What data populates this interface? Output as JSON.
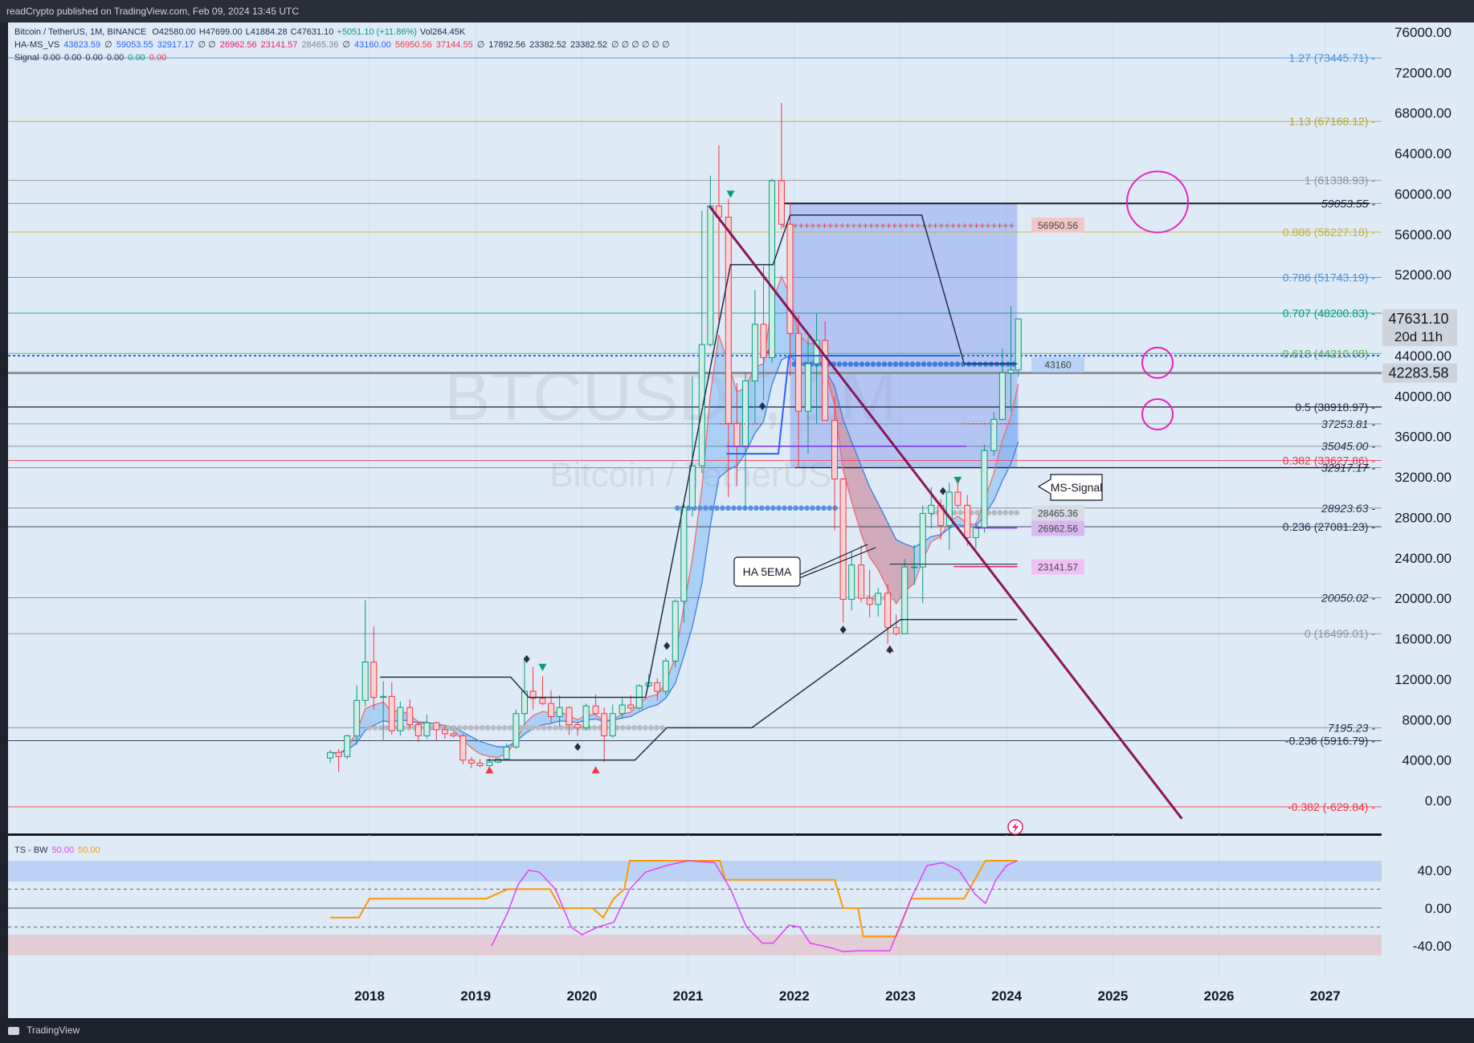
{
  "header": {
    "published": "readCrypto published on TradingView.com, Feb 09, 2024 13:45 UTC"
  },
  "footer": {
    "brand": "TradingView"
  },
  "legend": {
    "symbol": "Bitcoin / TetherUS, 1M, BINANCE",
    "ohlc": [
      {
        "text": "O42580.00",
        "color": "#22304a"
      },
      {
        "text": "H47699.00",
        "color": "#22304a"
      },
      {
        "text": "L41884.28",
        "color": "#22304a"
      },
      {
        "text": "C47631.10",
        "color": "#22304a"
      },
      {
        "text": "+5051.10 (+11.86%)",
        "color": "#089981"
      },
      {
        "text": "Vol264.45K",
        "color": "#22304a"
      }
    ],
    "hams": [
      {
        "text": "HA-MS_VS",
        "color": "#22304a"
      },
      {
        "text": "43823.59",
        "color": "#2962ff"
      },
      {
        "text": "∅",
        "color": "#22304a"
      },
      {
        "text": "59053.55",
        "color": "#2962ff"
      },
      {
        "text": "32917.17",
        "color": "#2962ff"
      },
      {
        "text": "∅ ∅",
        "color": "#22304a"
      },
      {
        "text": "26962.56",
        "color": "#e91e63"
      },
      {
        "text": "23141.57",
        "color": "#e91e63"
      },
      {
        "text": "28465.36",
        "color": "#808890"
      },
      {
        "text": "∅",
        "color": "#22304a"
      },
      {
        "text": "43160.00",
        "color": "#2962ff"
      },
      {
        "text": "56950.56",
        "color": "#f23645"
      },
      {
        "text": "37144.55",
        "color": "#f23645"
      },
      {
        "text": "∅",
        "color": "#22304a"
      },
      {
        "text": "17892.56",
        "color": "#22304a"
      },
      {
        "text": "23382.52",
        "color": "#22304a"
      },
      {
        "text": "23382.52",
        "color": "#22304a"
      },
      {
        "text": "∅ ∅ ∅ ∅ ∅ ∅",
        "color": "#22304a"
      }
    ],
    "signal": [
      {
        "text": "Signal",
        "color": "#22304a"
      },
      {
        "text": "0.00",
        "color": "#22304a"
      },
      {
        "text": "0.00",
        "color": "#22304a"
      },
      {
        "text": "0.00",
        "color": "#22304a"
      },
      {
        "text": "0.00",
        "color": "#22304a"
      },
      {
        "text": "0.00",
        "color": "#089981"
      },
      {
        "text": "0.00",
        "color": "#f23645"
      }
    ],
    "osc": [
      {
        "text": "TS - BW",
        "color": "#22304a"
      },
      {
        "text": "50.00",
        "color": "#e040fb"
      },
      {
        "text": "50.00",
        "color": "#ff9800"
      }
    ]
  },
  "watermark": {
    "ticker": "BTCUSDT, 1M",
    "name": "Bitcoin / TetherUS"
  },
  "chart_data": {
    "type": "candlestick",
    "x_axis": {
      "ticks": [
        "2018",
        "2019",
        "2020",
        "2021",
        "2022",
        "2023",
        "2024",
        "2025",
        "2026",
        "2027"
      ],
      "tick_values": [
        2018,
        2019,
        2020,
        2021,
        2022,
        2023,
        2024,
        2025,
        2026,
        2027
      ]
    },
    "y_axis": {
      "min": -2000,
      "max": 77000,
      "ticks": [
        76000,
        72000,
        68000,
        64000,
        60000,
        56000,
        52000,
        48000,
        44000,
        40000,
        36000,
        32000,
        28000,
        24000,
        20000,
        16000,
        12000,
        8000,
        4000,
        0
      ]
    },
    "price_tags": [
      {
        "text": "47631.10",
        "sub": "20d 11h",
        "value": 47631.1
      },
      {
        "text": "42283.58",
        "value": 42283.58
      }
    ],
    "fib_levels": [
      {
        "label": "1.27 (73445.71)",
        "value": 73445.71,
        "color": "#4a90d9"
      },
      {
        "label": "1.13 (67168.12)",
        "value": 67168.12,
        "color": "#b5a630"
      },
      {
        "label": "1 (61338.93)",
        "value": 61338.93,
        "color": "#8a9099"
      },
      {
        "label": "0.886 (56227.18)",
        "value": 56227.18,
        "color": "#c8b21d"
      },
      {
        "label": "0.786 (51743.19)",
        "value": 51743.19,
        "color": "#4a90d9"
      },
      {
        "label": "0.707 (48200.83)",
        "value": 48200.83,
        "color": "#089981"
      },
      {
        "label": "0.618 (44210.08)",
        "value": 44210.08,
        "color": "#4caf50"
      },
      {
        "label": "0.5 (38918.97)",
        "value": 38918.97,
        "color": "#22304a"
      },
      {
        "label": "0.382 (33627.86)",
        "value": 33627.86,
        "color": "#f23645"
      },
      {
        "label": "0.236 (27081.23)",
        "value": 27081.23,
        "color": "#22304a"
      },
      {
        "label": "0 (16499.01)",
        "value": 16499.01,
        "color": "#8a9099"
      },
      {
        "label": "-0.236 (5916.79)",
        "value": 5916.79,
        "color": "#22304a"
      },
      {
        "label": "-0.382 (-629.84)",
        "value": -629.84,
        "color": "#f23645"
      }
    ],
    "horizontal_levels": [
      {
        "label": "59053.55",
        "value": 59053.55
      },
      {
        "label": "37253.81",
        "value": 37253.81
      },
      {
        "label": "35045.00",
        "value": 35045.0
      },
      {
        "label": "32917.17",
        "value": 32917.17
      },
      {
        "label": "28923.63",
        "value": 28923.63
      },
      {
        "label": "20050.02",
        "value": 20050.02
      },
      {
        "label": "7195.23",
        "value": 7195.23
      }
    ],
    "indicator_labels": [
      {
        "text": "56950.56",
        "value": 56950.56,
        "bg": "#f4c7c7",
        "color": "#444444"
      },
      {
        "text": "43160",
        "value": 43160,
        "bg": "#b7d3f5",
        "color": "#444444"
      },
      {
        "text": "28465.36",
        "value": 28465.36,
        "bg": "#d6dbe4",
        "color": "#444444"
      },
      {
        "text": "26962.56",
        "value": 26962.56,
        "bg": "#d9b8f0",
        "color": "#444444"
      },
      {
        "text": "23141.57",
        "value": 23141.57,
        "bg": "#eec0f5",
        "color": "#444444"
      }
    ],
    "callouts": [
      {
        "text": "MS-Signal"
      },
      {
        "text": "HA 5EMA"
      }
    ],
    "candles": [
      {
        "t": 2017.63,
        "o": 4200,
        "h": 5000,
        "l": 3700,
        "c": 4750
      },
      {
        "t": 2017.71,
        "o": 4750,
        "h": 5100,
        "l": 2800,
        "c": 4350
      },
      {
        "t": 2017.79,
        "o": 4350,
        "h": 6500,
        "l": 4100,
        "c": 6400
      },
      {
        "t": 2017.88,
        "o": 6400,
        "h": 11400,
        "l": 5500,
        "c": 9900
      },
      {
        "t": 2017.96,
        "o": 9900,
        "h": 19800,
        "l": 9300,
        "c": 13700
      },
      {
        "t": 2018.04,
        "o": 13700,
        "h": 17200,
        "l": 9000,
        "c": 10200
      },
      {
        "t": 2018.13,
        "o": 10200,
        "h": 11800,
        "l": 6000,
        "c": 10300
      },
      {
        "t": 2018.21,
        "o": 10300,
        "h": 11700,
        "l": 6500,
        "c": 6900
      },
      {
        "t": 2018.29,
        "o": 6900,
        "h": 9800,
        "l": 6400,
        "c": 9200
      },
      {
        "t": 2018.38,
        "o": 9200,
        "h": 10000,
        "l": 7100,
        "c": 7500
      },
      {
        "t": 2018.46,
        "o": 7500,
        "h": 7800,
        "l": 5800,
        "c": 6400
      },
      {
        "t": 2018.54,
        "o": 6400,
        "h": 8500,
        "l": 6100,
        "c": 7700
      },
      {
        "t": 2018.63,
        "o": 7700,
        "h": 7800,
        "l": 5900,
        "c": 7000
      },
      {
        "t": 2018.71,
        "o": 7000,
        "h": 7400,
        "l": 6100,
        "c": 6600
      },
      {
        "t": 2018.79,
        "o": 6600,
        "h": 6800,
        "l": 6200,
        "c": 6400
      },
      {
        "t": 2018.88,
        "o": 6400,
        "h": 6600,
        "l": 3600,
        "c": 4000
      },
      {
        "t": 2018.96,
        "o": 4000,
        "h": 4300,
        "l": 3200,
        "c": 3700
      },
      {
        "t": 2019.04,
        "o": 3700,
        "h": 4100,
        "l": 3300,
        "c": 3450
      },
      {
        "t": 2019.13,
        "o": 3450,
        "h": 4200,
        "l": 3400,
        "c": 3800
      },
      {
        "t": 2019.21,
        "o": 3800,
        "h": 4100,
        "l": 3700,
        "c": 4100
      },
      {
        "t": 2019.29,
        "o": 4100,
        "h": 5600,
        "l": 4000,
        "c": 5300
      },
      {
        "t": 2019.38,
        "o": 5300,
        "h": 9000,
        "l": 5100,
        "c": 8600
      },
      {
        "t": 2019.46,
        "o": 8600,
        "h": 13900,
        "l": 7500,
        "c": 10800
      },
      {
        "t": 2019.54,
        "o": 10800,
        "h": 13200,
        "l": 9000,
        "c": 10100
      },
      {
        "t": 2019.63,
        "o": 10100,
        "h": 12300,
        "l": 9400,
        "c": 9600
      },
      {
        "t": 2019.71,
        "o": 9600,
        "h": 10900,
        "l": 7700,
        "c": 8300
      },
      {
        "t": 2019.79,
        "o": 8300,
        "h": 10400,
        "l": 7300,
        "c": 9200
      },
      {
        "t": 2019.88,
        "o": 9200,
        "h": 9300,
        "l": 6500,
        "c": 7500
      },
      {
        "t": 2019.96,
        "o": 7500,
        "h": 7700,
        "l": 6400,
        "c": 7200
      },
      {
        "t": 2020.04,
        "o": 7200,
        "h": 9600,
        "l": 6900,
        "c": 9350
      },
      {
        "t": 2020.13,
        "o": 9350,
        "h": 10500,
        "l": 8400,
        "c": 8600
      },
      {
        "t": 2020.21,
        "o": 8600,
        "h": 9200,
        "l": 3800,
        "c": 6400
      },
      {
        "t": 2020.29,
        "o": 6400,
        "h": 9500,
        "l": 6200,
        "c": 8600
      },
      {
        "t": 2020.38,
        "o": 8600,
        "h": 10100,
        "l": 8100,
        "c": 9450
      },
      {
        "t": 2020.46,
        "o": 9450,
        "h": 10400,
        "l": 8900,
        "c": 9150
      },
      {
        "t": 2020.54,
        "o": 9150,
        "h": 11500,
        "l": 9000,
        "c": 11350
      },
      {
        "t": 2020.63,
        "o": 11350,
        "h": 12500,
        "l": 11200,
        "c": 11650
      },
      {
        "t": 2020.71,
        "o": 11650,
        "h": 12100,
        "l": 9900,
        "c": 10800
      },
      {
        "t": 2020.79,
        "o": 10800,
        "h": 14100,
        "l": 10400,
        "c": 13800
      },
      {
        "t": 2020.88,
        "o": 13800,
        "h": 19900,
        "l": 13200,
        "c": 19700
      },
      {
        "t": 2020.96,
        "o": 19700,
        "h": 29300,
        "l": 17600,
        "c": 29000
      },
      {
        "t": 2021.04,
        "o": 29000,
        "h": 41900,
        "l": 28100,
        "c": 33100
      },
      {
        "t": 2021.13,
        "o": 33100,
        "h": 58300,
        "l": 32400,
        "c": 45100
      },
      {
        "t": 2021.21,
        "o": 45100,
        "h": 61800,
        "l": 44900,
        "c": 58800
      },
      {
        "t": 2021.29,
        "o": 58800,
        "h": 64800,
        "l": 47000,
        "c": 57700
      },
      {
        "t": 2021.38,
        "o": 57700,
        "h": 59500,
        "l": 30000,
        "c": 37300
      },
      {
        "t": 2021.46,
        "o": 37300,
        "h": 41300,
        "l": 31100,
        "c": 35000
      },
      {
        "t": 2021.54,
        "o": 35000,
        "h": 42300,
        "l": 28800,
        "c": 41500
      },
      {
        "t": 2021.63,
        "o": 41500,
        "h": 50500,
        "l": 37300,
        "c": 47100
      },
      {
        "t": 2021.71,
        "o": 47100,
        "h": 52900,
        "l": 39600,
        "c": 43800
      },
      {
        "t": 2021.79,
        "o": 43800,
        "h": 61500,
        "l": 43300,
        "c": 61300
      },
      {
        "t": 2021.88,
        "o": 61300,
        "h": 69000,
        "l": 56500,
        "c": 57000
      },
      {
        "t": 2021.96,
        "o": 57000,
        "h": 59100,
        "l": 42000,
        "c": 46200
      },
      {
        "t": 2022.04,
        "o": 46200,
        "h": 48000,
        "l": 32900,
        "c": 38500
      },
      {
        "t": 2022.13,
        "o": 38500,
        "h": 45800,
        "l": 34300,
        "c": 43200
      },
      {
        "t": 2022.21,
        "o": 43200,
        "h": 48200,
        "l": 37200,
        "c": 45500
      },
      {
        "t": 2022.29,
        "o": 45500,
        "h": 47400,
        "l": 37600,
        "c": 37600
      },
      {
        "t": 2022.38,
        "o": 37600,
        "h": 40000,
        "l": 26700,
        "c": 31800
      },
      {
        "t": 2022.46,
        "o": 31800,
        "h": 31900,
        "l": 17600,
        "c": 19900
      },
      {
        "t": 2022.54,
        "o": 19900,
        "h": 24600,
        "l": 18800,
        "c": 23300
      },
      {
        "t": 2022.63,
        "o": 23300,
        "h": 25200,
        "l": 19600,
        "c": 20000
      },
      {
        "t": 2022.71,
        "o": 20000,
        "h": 22800,
        "l": 18100,
        "c": 19400
      },
      {
        "t": 2022.79,
        "o": 19400,
        "h": 21000,
        "l": 18200,
        "c": 20500
      },
      {
        "t": 2022.88,
        "o": 20500,
        "h": 21400,
        "l": 15500,
        "c": 17100
      },
      {
        "t": 2022.96,
        "o": 17100,
        "h": 18400,
        "l": 16300,
        "c": 16500
      },
      {
        "t": 2023.04,
        "o": 16500,
        "h": 23900,
        "l": 16500,
        "c": 23100
      },
      {
        "t": 2023.13,
        "o": 23100,
        "h": 25300,
        "l": 21300,
        "c": 23100
      },
      {
        "t": 2023.21,
        "o": 23100,
        "h": 29200,
        "l": 19500,
        "c": 28400
      },
      {
        "t": 2023.29,
        "o": 28400,
        "h": 31000,
        "l": 26900,
        "c": 29200
      },
      {
        "t": 2023.38,
        "o": 29200,
        "h": 29800,
        "l": 25800,
        "c": 27200
      },
      {
        "t": 2023.46,
        "o": 27200,
        "h": 31400,
        "l": 24800,
        "c": 30500
      },
      {
        "t": 2023.54,
        "o": 30500,
        "h": 31800,
        "l": 28900,
        "c": 29200
      },
      {
        "t": 2023.63,
        "o": 29200,
        "h": 30200,
        "l": 25200,
        "c": 26000
      },
      {
        "t": 2023.71,
        "o": 26000,
        "h": 27500,
        "l": 24900,
        "c": 27000
      },
      {
        "t": 2023.79,
        "o": 27000,
        "h": 35200,
        "l": 26500,
        "c": 34600
      },
      {
        "t": 2023.88,
        "o": 34600,
        "h": 38400,
        "l": 34100,
        "c": 37700
      },
      {
        "t": 2023.96,
        "o": 37700,
        "h": 44700,
        "l": 37600,
        "c": 42300
      },
      {
        "t": 2024.04,
        "o": 42300,
        "h": 48900,
        "l": 38500,
        "c": 42580
      },
      {
        "t": 2024.11,
        "o": 42580,
        "h": 47699,
        "l": 41884.28,
        "c": 47631.1
      }
    ],
    "oscillator": {
      "name": "TS - BW",
      "y_ticks": [
        40,
        0,
        -40
      ],
      "y_range": [
        -50,
        50
      ]
    }
  }
}
